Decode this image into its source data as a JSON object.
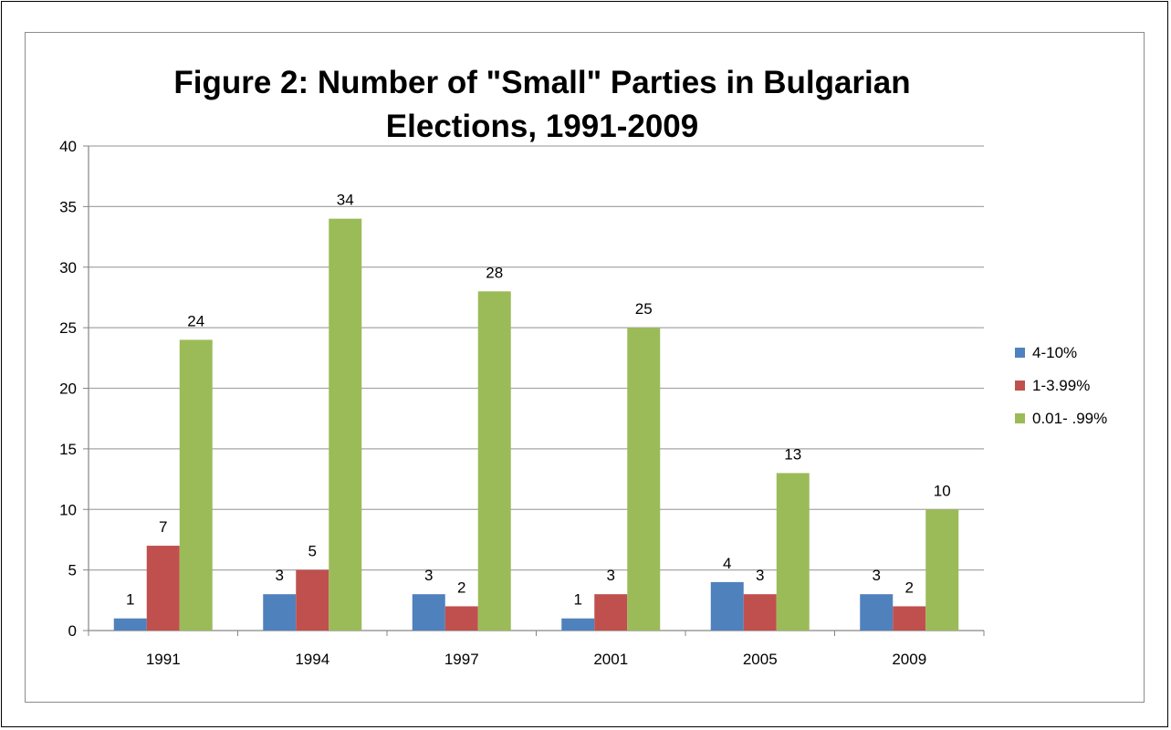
{
  "chart_data": {
    "type": "bar",
    "title": "Figure 2: Number of \"Small\" Parties in Bulgarian Elections, 1991-2009",
    "title_lines": [
      "Figure 2: Number of \"Small\" Parties in Bulgarian",
      "Elections, 1991-2009"
    ],
    "xlabel": "",
    "ylabel": "",
    "categories": [
      "1991",
      "1994",
      "1997",
      "2001",
      "2005",
      "2009"
    ],
    "ylim": [
      0,
      40
    ],
    "yticks": [
      0,
      5,
      10,
      15,
      20,
      25,
      30,
      35,
      40
    ],
    "grid": true,
    "legend_position": "right",
    "series": [
      {
        "name": "4-10%",
        "color": "#4f81bd",
        "values": [
          1,
          3,
          3,
          1,
          4,
          3
        ]
      },
      {
        "name": "1-3.99%",
        "color": "#c0504d",
        "values": [
          7,
          5,
          2,
          3,
          3,
          2
        ]
      },
      {
        "name": "0.01- .99%",
        "color": "#9bbb59",
        "values": [
          24,
          34,
          28,
          25,
          13,
          10
        ]
      }
    ]
  }
}
